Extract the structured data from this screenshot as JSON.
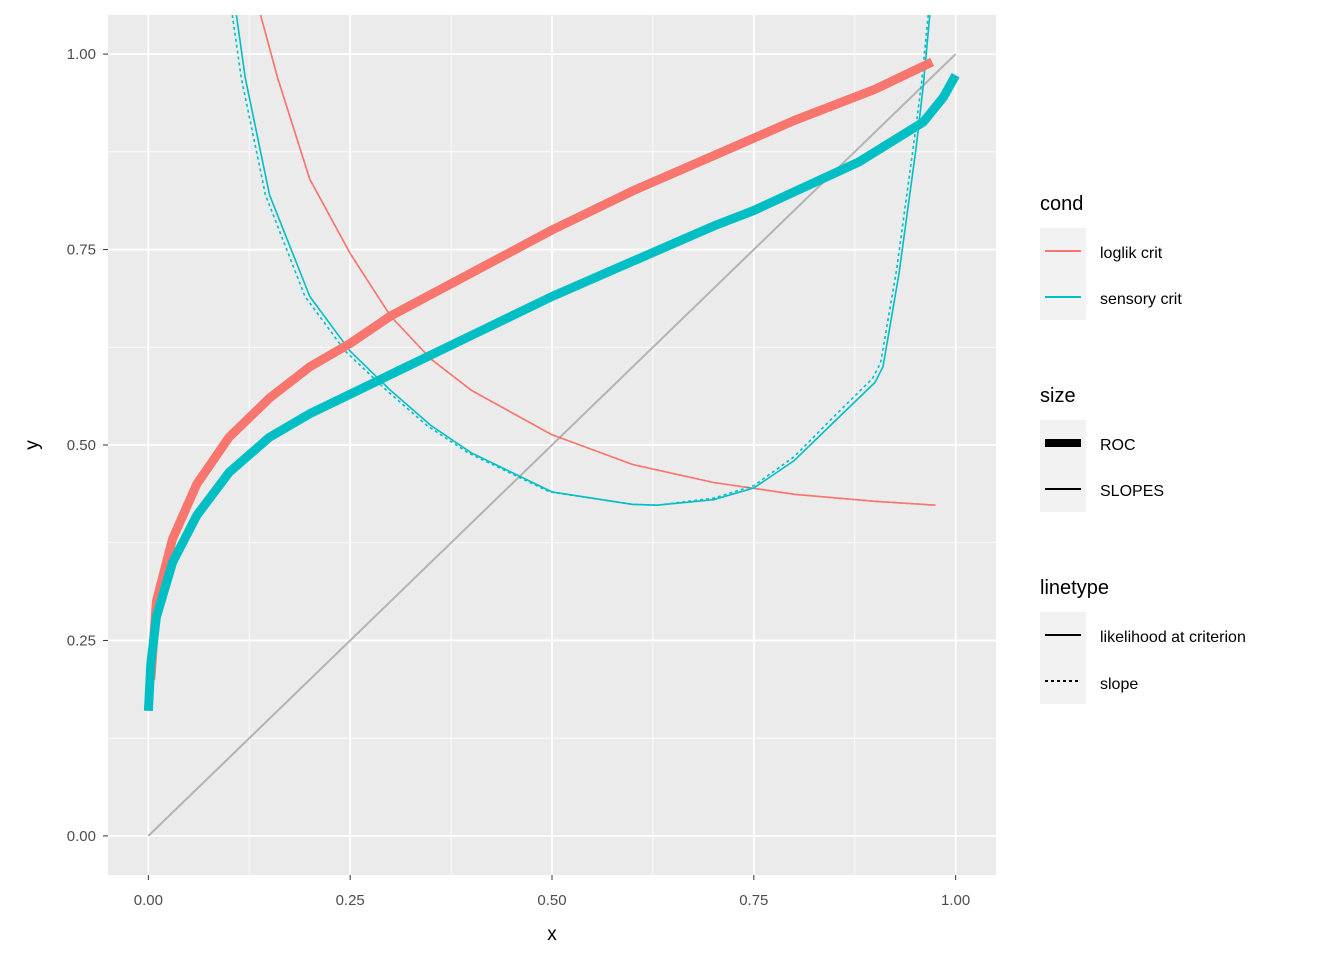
{
  "chart_data": {
    "type": "line",
    "xlabel": "x",
    "ylabel": "y",
    "xlim": [
      -0.05,
      1.05
    ],
    "ylim": [
      -0.05,
      1.05
    ],
    "x_ticks": [
      "0.00",
      "0.25",
      "0.50",
      "0.75",
      "1.00"
    ],
    "y_ticks": [
      "0.00",
      "0.25",
      "0.50",
      "0.75",
      "1.00"
    ],
    "grid": true,
    "legend_position": "right",
    "colors": {
      "loglik crit": "#F8766D",
      "sensory crit": "#00BFC4",
      "diagonal": "#B3B3B3",
      "panel": "#EBEBEB"
    },
    "legends": [
      {
        "title": "cond",
        "entries": [
          "loglik crit",
          "sensory crit"
        ]
      },
      {
        "title": "size",
        "entries": [
          "ROC",
          "SLOPES"
        ]
      },
      {
        "title": "linetype",
        "entries": [
          "likelihood at criterion",
          "slope"
        ]
      }
    ],
    "series": [
      {
        "cond": "loglik crit",
        "size": "ROC",
        "linetype": "likelihood at criterion",
        "x": [
          0.003,
          0.01,
          0.03,
          0.06,
          0.1,
          0.15,
          0.2,
          0.25,
          0.3,
          0.4,
          0.5,
          0.6,
          0.7,
          0.8,
          0.9,
          0.971
        ],
        "y": [
          0.2,
          0.3,
          0.38,
          0.45,
          0.51,
          0.56,
          0.6,
          0.63,
          0.665,
          0.72,
          0.775,
          0.825,
          0.87,
          0.915,
          0.955,
          0.99
        ]
      },
      {
        "cond": "sensory crit",
        "size": "ROC",
        "linetype": "likelihood at criterion",
        "x": [
          0,
          0.003,
          0.01,
          0.03,
          0.06,
          0.1,
          0.15,
          0.2,
          0.25,
          0.3,
          0.4,
          0.5,
          0.6,
          0.7,
          0.75,
          0.88,
          0.96,
          0.985,
          1.0
        ],
        "y": [
          0.16,
          0.22,
          0.28,
          0.35,
          0.41,
          0.465,
          0.51,
          0.54,
          0.565,
          0.59,
          0.64,
          0.69,
          0.735,
          0.78,
          0.8,
          0.862,
          0.913,
          0.945,
          0.973
        ]
      },
      {
        "cond": "loglik crit",
        "size": "SLOPES",
        "linetype": "likelihood at criterion",
        "x": [
          0.139,
          0.16,
          0.2,
          0.25,
          0.3,
          0.35,
          0.4,
          0.5,
          0.6,
          0.7,
          0.8,
          0.9,
          0.975
        ],
        "y": [
          1.05,
          0.97,
          0.84,
          0.745,
          0.665,
          0.61,
          0.57,
          0.513,
          0.475,
          0.452,
          0.437,
          0.428,
          0.423
        ]
      },
      {
        "cond": "loglik crit",
        "size": "SLOPES",
        "linetype": "slope",
        "x": [
          0.139,
          0.16,
          0.2,
          0.25,
          0.3,
          0.35,
          0.4,
          0.5,
          0.6,
          0.7,
          0.8,
          0.9,
          0.975
        ],
        "y": [
          1.05,
          0.97,
          0.84,
          0.745,
          0.665,
          0.61,
          0.57,
          0.513,
          0.475,
          0.452,
          0.437,
          0.428,
          0.423
        ]
      },
      {
        "cond": "sensory crit",
        "size": "SLOPES",
        "linetype": "likelihood at criterion",
        "x": [
          0.109,
          0.12,
          0.15,
          0.2,
          0.25,
          0.3,
          0.35,
          0.4,
          0.5,
          0.6,
          0.63,
          0.7,
          0.75,
          0.8,
          0.85,
          0.9,
          0.91,
          0.93,
          0.951,
          0.96,
          0.968
        ],
        "y": [
          1.05,
          0.97,
          0.82,
          0.69,
          0.62,
          0.57,
          0.525,
          0.49,
          0.44,
          0.424,
          0.423,
          0.43,
          0.445,
          0.48,
          0.53,
          0.58,
          0.6,
          0.72,
          0.88,
          0.96,
          1.05
        ]
      },
      {
        "cond": "sensory crit",
        "size": "SLOPES",
        "linetype": "slope",
        "x": [
          0.104,
          0.115,
          0.145,
          0.194,
          0.244,
          0.295,
          0.345,
          0.396,
          0.497,
          0.6,
          0.63,
          0.7,
          0.75,
          0.8,
          0.848,
          0.897,
          0.907,
          0.927,
          0.948,
          0.958,
          0.966
        ],
        "y": [
          1.05,
          0.97,
          0.82,
          0.69,
          0.62,
          0.57,
          0.525,
          0.49,
          0.44,
          0.424,
          0.423,
          0.432,
          0.448,
          0.485,
          0.535,
          0.585,
          0.605,
          0.725,
          0.885,
          0.965,
          1.05
        ]
      },
      {
        "cond": "diagonal",
        "x": [
          0,
          1
        ],
        "y": [
          0,
          1
        ]
      }
    ]
  }
}
